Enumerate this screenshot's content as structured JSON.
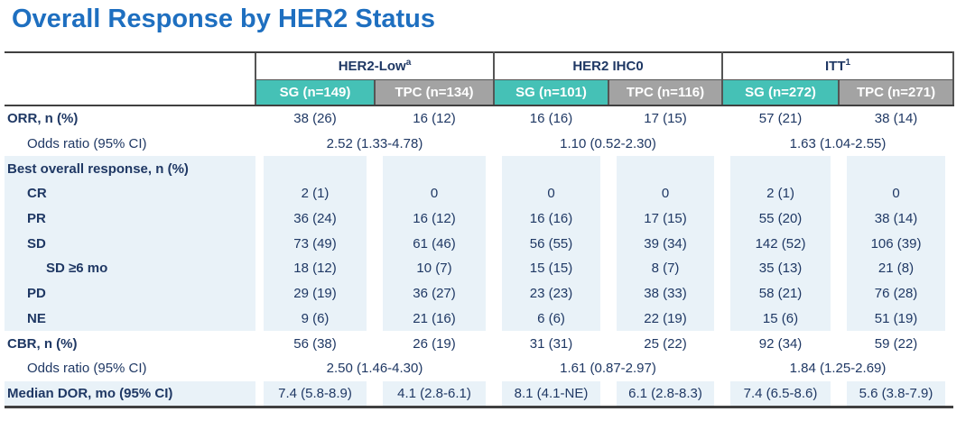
{
  "title": "Overall Response by HER2 Status",
  "colors": {
    "title_blue": "#1E6FC0",
    "body_navy": "#1F3864",
    "sg_teal": "#45C1B6",
    "tpc_gray": "#A3A3A3",
    "tint_blue": "#E9F2F8",
    "rule_dark": "#404040"
  },
  "table": {
    "groups": [
      {
        "name": "HER2-Low",
        "sup": "a"
      },
      {
        "name": "HER2 IHC0",
        "sup": ""
      },
      {
        "name": "ITT",
        "sup": "1"
      }
    ],
    "col_headers": [
      "SG (n=149)",
      "TPC (n=134)",
      "SG (n=101)",
      "TPC (n=116)",
      "SG (n=272)",
      "TPC (n=271)"
    ],
    "rows": [
      {
        "label": "ORR, n (%)",
        "indent": 0,
        "bold": true,
        "tint": false,
        "type": "cells",
        "values": [
          "38 (26)",
          "16 (12)",
          "16 (16)",
          "17 (15)",
          "57 (21)",
          "38 (14)"
        ]
      },
      {
        "label": "Odds ratio (95% CI)",
        "indent": 1,
        "bold": false,
        "tint": false,
        "type": "span",
        "values": [
          "2.52 (1.33-4.78)",
          "1.10 (0.52-2.30)",
          "1.63 (1.04-2.55)"
        ]
      },
      {
        "label": "Best overall response, n (%)",
        "indent": 0,
        "bold": true,
        "tint": true,
        "type": "cells",
        "values": [
          "",
          "",
          "",
          "",
          "",
          ""
        ]
      },
      {
        "label": "CR",
        "indent": 1,
        "bold": true,
        "tint": true,
        "type": "cells",
        "values": [
          "2 (1)",
          "0",
          "0",
          "0",
          "2 (1)",
          "0"
        ]
      },
      {
        "label": "PR",
        "indent": 1,
        "bold": true,
        "tint": true,
        "type": "cells",
        "values": [
          "36 (24)",
          "16 (12)",
          "16 (16)",
          "17 (15)",
          "55 (20)",
          "38 (14)"
        ]
      },
      {
        "label": "SD",
        "indent": 1,
        "bold": true,
        "tint": true,
        "type": "cells",
        "values": [
          "73 (49)",
          "61 (46)",
          "56 (55)",
          "39 (34)",
          "142 (52)",
          "106 (39)"
        ]
      },
      {
        "label": "SD ≥6 mo",
        "indent": 2,
        "bold": true,
        "tint": true,
        "type": "cells",
        "values": [
          "18 (12)",
          "10 (7)",
          "15 (15)",
          "8 (7)",
          "35 (13)",
          "21 (8)"
        ]
      },
      {
        "label": "PD",
        "indent": 1,
        "bold": true,
        "tint": true,
        "type": "cells",
        "values": [
          "29 (19)",
          "36 (27)",
          "23 (23)",
          "38 (33)",
          "58 (21)",
          "76 (28)"
        ]
      },
      {
        "label": "NE",
        "indent": 1,
        "bold": true,
        "tint": true,
        "type": "cells",
        "values": [
          "9 (6)",
          "21 (16)",
          "6 (6)",
          "22 (19)",
          "15 (6)",
          "51 (19)"
        ]
      },
      {
        "label": "CBR, n (%)",
        "indent": 0,
        "bold": true,
        "tint": false,
        "type": "cells",
        "values": [
          "56 (38)",
          "26 (19)",
          "31 (31)",
          "25 (22)",
          "92 (34)",
          "59 (22)"
        ]
      },
      {
        "label": "Odds ratio (95% CI)",
        "indent": 1,
        "bold": false,
        "tint": false,
        "type": "span",
        "values": [
          "2.50 (1.46-4.30)",
          "1.61 (0.87-2.97)",
          "1.84 (1.25-2.69)"
        ]
      },
      {
        "label": "Median DOR, mo (95% CI)",
        "indent": 0,
        "bold": true,
        "tint": true,
        "type": "cells",
        "values": [
          "7.4 (5.8-8.9)",
          "4.1 (2.8-6.1)",
          "8.1 (4.1-NE)",
          "6.1 (2.8-8.3)",
          "7.4 (6.5-8.6)",
          "5.6 (3.8-7.9)"
        ]
      }
    ]
  }
}
